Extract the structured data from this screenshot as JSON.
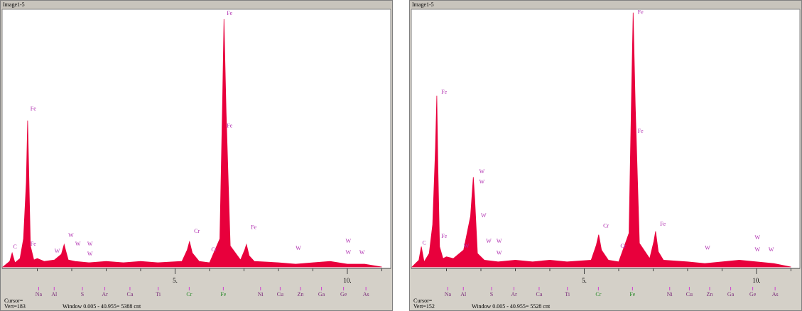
{
  "chart_data": [
    {
      "type": "spectrum",
      "title": "Image1-5",
      "color": "#e8003c",
      "x": [
        0,
        0.1,
        0.2,
        0.27,
        0.35,
        0.5,
        0.6,
        0.68,
        0.72,
        0.75,
        0.8,
        0.9,
        1.0,
        1.2,
        1.5,
        1.7,
        1.78,
        1.82,
        1.9,
        2.1,
        2.5,
        3,
        3.5,
        4,
        4.5,
        5.2,
        5.35,
        5.42,
        5.5,
        5.7,
        6.0,
        6.3,
        6.38,
        6.42,
        6.48,
        6.6,
        6.9,
        7.02,
        7.07,
        7.15,
        7.3,
        8,
        8.5,
        9,
        9.5,
        10,
        10.5,
        11
      ],
      "values": [
        0,
        2,
        4,
        10,
        3,
        6,
        20,
        60,
        104,
        70,
        15,
        5,
        6,
        4,
        5,
        9,
        16,
        12,
        5,
        4,
        3,
        4,
        3,
        4,
        3,
        4,
        12,
        18,
        10,
        4,
        3,
        20,
        120,
        176,
        110,
        15,
        5,
        12,
        16,
        8,
        4,
        3,
        2,
        3,
        4,
        2,
        2,
        0
      ],
      "xlim": [
        0,
        11.3
      ],
      "ylim": [
        0,
        183
      ],
      "xticks": [
        {
          "value": 5,
          "label": "5."
        },
        {
          "value": 10,
          "label": "10."
        }
      ],
      "xminor": [
        1,
        2,
        3,
        4,
        6,
        7,
        8,
        9,
        11
      ],
      "annotations": [
        {
          "text": "C",
          "x": 0.3,
          "y": 14
        },
        {
          "text": "Fe",
          "x": 0.8,
          "y": 112
        },
        {
          "text": "Fe",
          "x": 0.8,
          "y": 16
        },
        {
          "text": "W",
          "x": 1.5,
          "y": 11
        },
        {
          "text": "W",
          "x": 1.9,
          "y": 22
        },
        {
          "text": "W",
          "x": 2.1,
          "y": 16
        },
        {
          "text": "W",
          "x": 2.45,
          "y": 16
        },
        {
          "text": "W",
          "x": 2.45,
          "y": 9
        },
        {
          "text": "Cr",
          "x": 5.55,
          "y": 25
        },
        {
          "text": "Cr",
          "x": 6.05,
          "y": 12
        },
        {
          "text": "Fe",
          "x": 6.5,
          "y": 180
        },
        {
          "text": "Fe",
          "x": 6.5,
          "y": 100
        },
        {
          "text": "Fe",
          "x": 7.2,
          "y": 28
        },
        {
          "text": "W",
          "x": 8.5,
          "y": 13
        },
        {
          "text": "W",
          "x": 9.95,
          "y": 18
        },
        {
          "text": "W",
          "x": 9.95,
          "y": 10
        },
        {
          "text": "W",
          "x": 10.35,
          "y": 10
        }
      ],
      "markers": [
        {
          "label": "Na",
          "x": 1.04,
          "color": "#7a2a7a"
        },
        {
          "label": "Al",
          "x": 1.49,
          "color": "#7a2a7a"
        },
        {
          "label": "S",
          "x": 2.31,
          "color": "#7a2a7a"
        },
        {
          "label": "Ar",
          "x": 2.96,
          "color": "#7a2a7a"
        },
        {
          "label": "Ca",
          "x": 3.69,
          "color": "#7a2a7a"
        },
        {
          "label": "Ti",
          "x": 4.51,
          "color": "#7a2a7a"
        },
        {
          "label": "Cr",
          "x": 5.41,
          "color": "#2a8a2a"
        },
        {
          "label": "Fe",
          "x": 6.4,
          "color": "#2a8a2a"
        },
        {
          "label": "Ni",
          "x": 7.48,
          "color": "#7a2a7a"
        },
        {
          "label": "Cu",
          "x": 8.05,
          "color": "#7a2a7a"
        },
        {
          "label": "Zn",
          "x": 8.64,
          "color": "#7a2a7a"
        },
        {
          "label": "Ga",
          "x": 9.25,
          "color": "#7a2a7a"
        },
        {
          "label": "Ge",
          "x": 9.89,
          "color": "#7a2a7a"
        },
        {
          "label": "As",
          "x": 10.54,
          "color": "#7a2a7a"
        }
      ],
      "cursor": "Cursor=",
      "vert": "Vert=183",
      "window": "Window 0.005 - 40.955=  5388 cnt"
    },
    {
      "type": "spectrum",
      "title": "Image1-5",
      "color": "#e8003c",
      "x": [
        0,
        0.1,
        0.2,
        0.27,
        0.35,
        0.5,
        0.6,
        0.68,
        0.72,
        0.75,
        0.8,
        0.9,
        1.0,
        1.2,
        1.5,
        1.7,
        1.78,
        1.82,
        1.9,
        2.1,
        2.5,
        3,
        3.5,
        4,
        4.5,
        5.2,
        5.35,
        5.42,
        5.5,
        5.7,
        6.0,
        6.3,
        6.38,
        6.42,
        6.48,
        6.6,
        6.9,
        7.02,
        7.07,
        7.15,
        7.3,
        8,
        8.5,
        9,
        9.5,
        10,
        10.5,
        11
      ],
      "values": [
        0,
        2,
        4,
        12,
        3,
        8,
        25,
        70,
        101,
        60,
        12,
        5,
        6,
        5,
        10,
        30,
        53,
        40,
        8,
        4,
        3,
        4,
        3,
        4,
        3,
        4,
        13,
        19,
        10,
        4,
        3,
        20,
        110,
        150,
        95,
        14,
        5,
        15,
        21,
        9,
        4,
        3,
        2,
        3,
        4,
        3,
        2,
        0
      ],
      "xlim": [
        0,
        11.3
      ],
      "ylim": [
        0,
        152
      ],
      "xticks": [
        {
          "value": 5,
          "label": "5."
        },
        {
          "value": 10,
          "label": "10."
        }
      ],
      "xminor": [
        1,
        2,
        3,
        4,
        6,
        7,
        8,
        9,
        11
      ],
      "annotations": [
        {
          "text": "C",
          "x": 0.3,
          "y": 14
        },
        {
          "text": "Fe",
          "x": 0.85,
          "y": 103
        },
        {
          "text": "Fe",
          "x": 0.85,
          "y": 18
        },
        {
          "text": "W",
          "x": 1.5,
          "y": 12
        },
        {
          "text": "W",
          "x": 1.95,
          "y": 56
        },
        {
          "text": "W",
          "x": 1.95,
          "y": 50
        },
        {
          "text": "W",
          "x": 2.0,
          "y": 30
        },
        {
          "text": "W",
          "x": 2.15,
          "y": 15
        },
        {
          "text": "W",
          "x": 2.45,
          "y": 15
        },
        {
          "text": "W",
          "x": 2.45,
          "y": 8
        },
        {
          "text": "Cr",
          "x": 5.55,
          "y": 24
        },
        {
          "text": "Cr",
          "x": 6.05,
          "y": 12
        },
        {
          "text": "Fe",
          "x": 6.55,
          "y": 150
        },
        {
          "text": "Fe",
          "x": 6.55,
          "y": 80
        },
        {
          "text": "Fe",
          "x": 7.2,
          "y": 25
        },
        {
          "text": "W",
          "x": 8.5,
          "y": 11
        },
        {
          "text": "W",
          "x": 9.95,
          "y": 17
        },
        {
          "text": "W",
          "x": 9.95,
          "y": 10
        },
        {
          "text": "W",
          "x": 10.35,
          "y": 10
        }
      ],
      "markers": [
        {
          "label": "Na",
          "x": 1.04,
          "color": "#7a2a7a"
        },
        {
          "label": "Al",
          "x": 1.49,
          "color": "#7a2a7a"
        },
        {
          "label": "S",
          "x": 2.31,
          "color": "#7a2a7a"
        },
        {
          "label": "Ar",
          "x": 2.96,
          "color": "#7a2a7a"
        },
        {
          "label": "Ca",
          "x": 3.69,
          "color": "#7a2a7a"
        },
        {
          "label": "Ti",
          "x": 4.51,
          "color": "#7a2a7a"
        },
        {
          "label": "Cr",
          "x": 5.41,
          "color": "#2a8a2a"
        },
        {
          "label": "Fe",
          "x": 6.4,
          "color": "#2a8a2a"
        },
        {
          "label": "Ni",
          "x": 7.48,
          "color": "#7a2a7a"
        },
        {
          "label": "Cu",
          "x": 8.05,
          "color": "#7a2a7a"
        },
        {
          "label": "Zn",
          "x": 8.64,
          "color": "#7a2a7a"
        },
        {
          "label": "Ga",
          "x": 9.25,
          "color": "#7a2a7a"
        },
        {
          "label": "Ge",
          "x": 9.89,
          "color": "#7a2a7a"
        },
        {
          "label": "As",
          "x": 10.54,
          "color": "#7a2a7a"
        }
      ],
      "cursor": "Cursor=",
      "vert": "Vert=152",
      "window": "Window 0.005 - 40.955=  5528 cnt"
    }
  ]
}
